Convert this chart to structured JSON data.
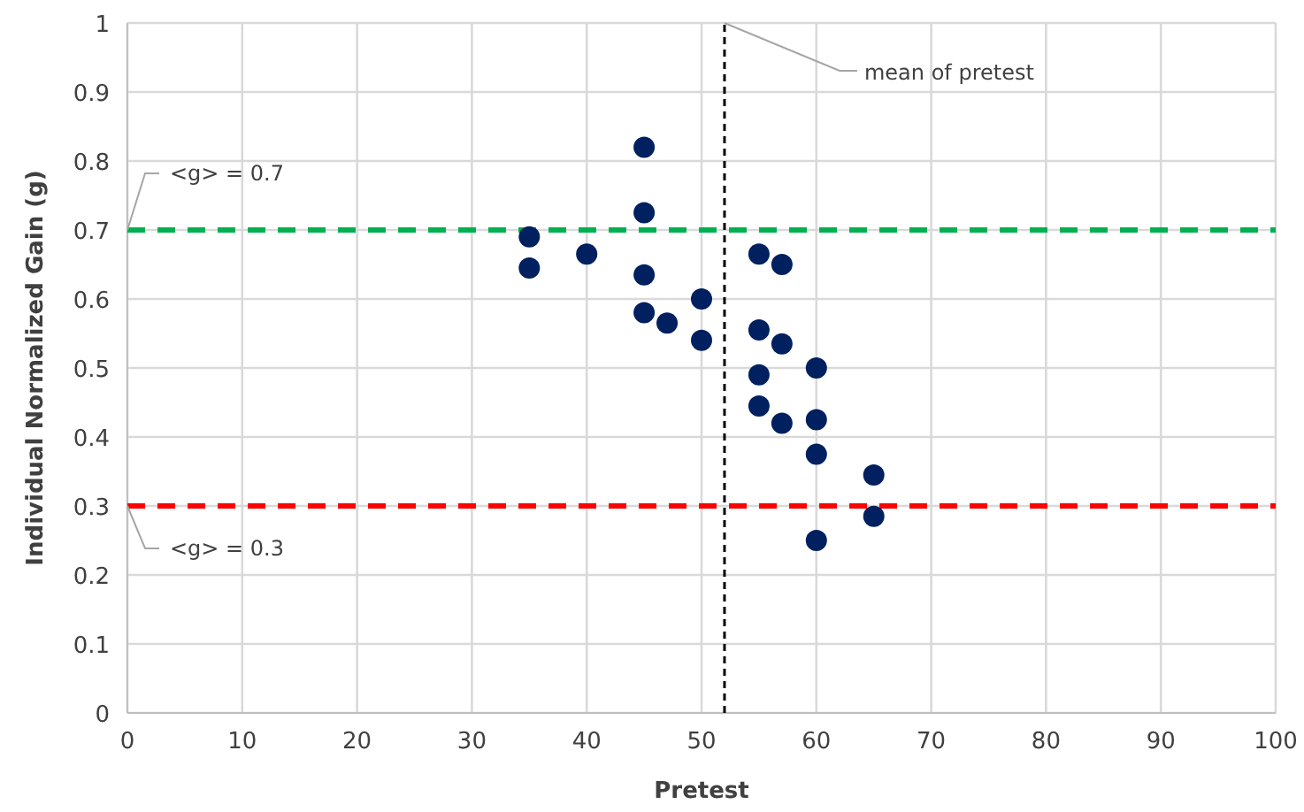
{
  "chart_data": {
    "type": "scatter",
    "xlabel": "Pretest",
    "ylabel": "Individual Normalized Gain (g)",
    "xlim": [
      0,
      100
    ],
    "ylim": [
      0,
      1
    ],
    "xticks": [
      0,
      10,
      20,
      30,
      40,
      50,
      60,
      70,
      80,
      90,
      100
    ],
    "yticks": [
      0,
      0.1,
      0.2,
      0.3,
      0.4,
      0.5,
      0.6,
      0.7,
      0.8,
      0.9,
      1
    ],
    "grid": true,
    "marker": "circle",
    "series": [
      {
        "color": "#002060",
        "x": [
          35,
          35,
          40,
          45,
          45,
          45,
          45,
          47,
          50,
          50,
          55,
          57,
          55,
          57,
          55,
          55,
          57,
          60,
          60,
          60,
          60,
          65,
          65
        ],
        "values": [
          0.69,
          0.645,
          0.665,
          0.82,
          0.725,
          0.635,
          0.58,
          0.565,
          0.6,
          0.54,
          0.665,
          0.65,
          0.555,
          0.535,
          0.49,
          0.445,
          0.42,
          0.5,
          0.425,
          0.375,
          0.25,
          0.345,
          0.285
        ]
      }
    ],
    "ref_lines": [
      {
        "axis": "y",
        "value": 0.7,
        "label": "<g> = 0.7",
        "color": "#00b050",
        "line_style": "dashed"
      },
      {
        "axis": "y",
        "value": 0.3,
        "label": "<g> = 0.3",
        "color": "#ff0000",
        "line_style": "dashed"
      },
      {
        "axis": "x",
        "value": 52,
        "label": "mean of pretest",
        "color": "#000000",
        "line_style": "dashed"
      }
    ]
  }
}
